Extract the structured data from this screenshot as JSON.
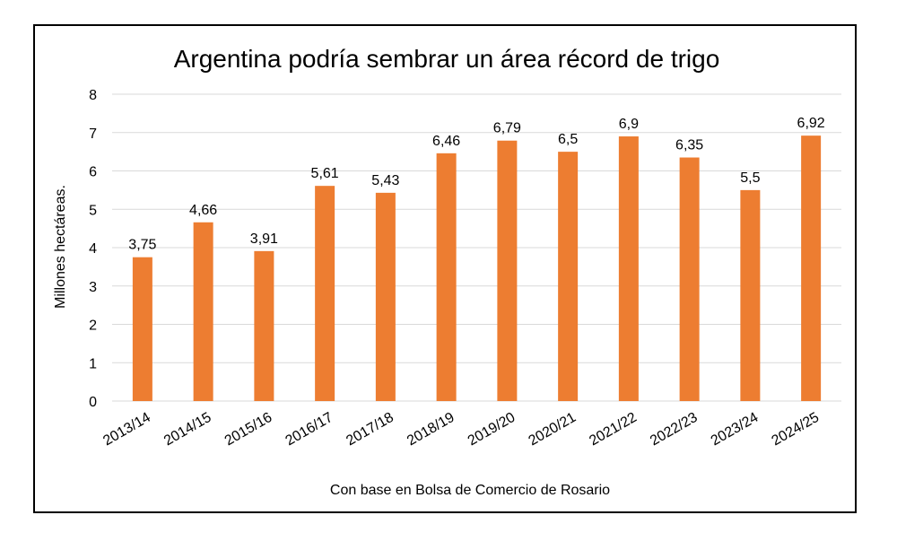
{
  "chart_data": {
    "type": "bar",
    "title": "Argentina podría sembrar un área récord de trigo",
    "ylabel": "Millones hectáreas.",
    "xlabel": "Con base en Bolsa de Comercio de Rosario",
    "ylim": [
      0,
      8
    ],
    "yticks": [
      0,
      1,
      2,
      3,
      4,
      5,
      6,
      7,
      8
    ],
    "grid": true,
    "legend": "none",
    "bar_color": "#ED7D31",
    "grid_color": "#D9D9D9",
    "categories": [
      "2013/14",
      "2014/15",
      "2015/16",
      "2016/17",
      "2017/18",
      "2018/19",
      "2019/20",
      "2020/21",
      "2021/22",
      "2022/23",
      "2023/24",
      "2024/25"
    ],
    "values": [
      3.75,
      4.66,
      3.91,
      5.61,
      5.43,
      6.46,
      6.79,
      6.5,
      6.9,
      6.35,
      5.5,
      6.92
    ],
    "value_labels": [
      "3,75",
      "4,66",
      "3,91",
      "5,61",
      "5,43",
      "6,46",
      "6,79",
      "6,5",
      "6,9",
      "6,35",
      "5,5",
      "6,92"
    ]
  }
}
